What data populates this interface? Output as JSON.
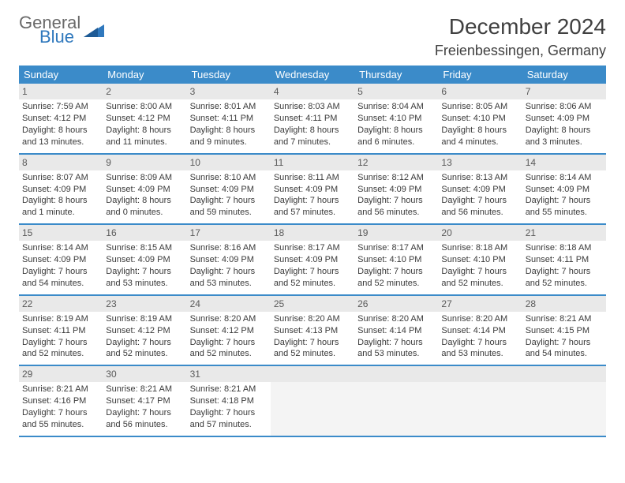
{
  "logo": {
    "general": "General",
    "blue": "Blue"
  },
  "title": "December 2024",
  "location": "Freienbessingen, Germany",
  "colors": {
    "header_bg": "#3b8bc9",
    "header_text": "#ffffff",
    "daynum_bg": "#e9e9e9",
    "border": "#3b8bc9",
    "empty_bg": "#f4f4f4",
    "text": "#3a3a3a",
    "logo_blue": "#2f78bd",
    "logo_grey": "#6a6a6a"
  },
  "days_of_week": [
    "Sunday",
    "Monday",
    "Tuesday",
    "Wednesday",
    "Thursday",
    "Friday",
    "Saturday"
  ],
  "weeks": [
    [
      {
        "n": "1",
        "sunrise": "Sunrise: 7:59 AM",
        "sunset": "Sunset: 4:12 PM",
        "day1": "Daylight: 8 hours",
        "day2": "and 13 minutes."
      },
      {
        "n": "2",
        "sunrise": "Sunrise: 8:00 AM",
        "sunset": "Sunset: 4:12 PM",
        "day1": "Daylight: 8 hours",
        "day2": "and 11 minutes."
      },
      {
        "n": "3",
        "sunrise": "Sunrise: 8:01 AM",
        "sunset": "Sunset: 4:11 PM",
        "day1": "Daylight: 8 hours",
        "day2": "and 9 minutes."
      },
      {
        "n": "4",
        "sunrise": "Sunrise: 8:03 AM",
        "sunset": "Sunset: 4:11 PM",
        "day1": "Daylight: 8 hours",
        "day2": "and 7 minutes."
      },
      {
        "n": "5",
        "sunrise": "Sunrise: 8:04 AM",
        "sunset": "Sunset: 4:10 PM",
        "day1": "Daylight: 8 hours",
        "day2": "and 6 minutes."
      },
      {
        "n": "6",
        "sunrise": "Sunrise: 8:05 AM",
        "sunset": "Sunset: 4:10 PM",
        "day1": "Daylight: 8 hours",
        "day2": "and 4 minutes."
      },
      {
        "n": "7",
        "sunrise": "Sunrise: 8:06 AM",
        "sunset": "Sunset: 4:09 PM",
        "day1": "Daylight: 8 hours",
        "day2": "and 3 minutes."
      }
    ],
    [
      {
        "n": "8",
        "sunrise": "Sunrise: 8:07 AM",
        "sunset": "Sunset: 4:09 PM",
        "day1": "Daylight: 8 hours",
        "day2": "and 1 minute."
      },
      {
        "n": "9",
        "sunrise": "Sunrise: 8:09 AM",
        "sunset": "Sunset: 4:09 PM",
        "day1": "Daylight: 8 hours",
        "day2": "and 0 minutes."
      },
      {
        "n": "10",
        "sunrise": "Sunrise: 8:10 AM",
        "sunset": "Sunset: 4:09 PM",
        "day1": "Daylight: 7 hours",
        "day2": "and 59 minutes."
      },
      {
        "n": "11",
        "sunrise": "Sunrise: 8:11 AM",
        "sunset": "Sunset: 4:09 PM",
        "day1": "Daylight: 7 hours",
        "day2": "and 57 minutes."
      },
      {
        "n": "12",
        "sunrise": "Sunrise: 8:12 AM",
        "sunset": "Sunset: 4:09 PM",
        "day1": "Daylight: 7 hours",
        "day2": "and 56 minutes."
      },
      {
        "n": "13",
        "sunrise": "Sunrise: 8:13 AM",
        "sunset": "Sunset: 4:09 PM",
        "day1": "Daylight: 7 hours",
        "day2": "and 56 minutes."
      },
      {
        "n": "14",
        "sunrise": "Sunrise: 8:14 AM",
        "sunset": "Sunset: 4:09 PM",
        "day1": "Daylight: 7 hours",
        "day2": "and 55 minutes."
      }
    ],
    [
      {
        "n": "15",
        "sunrise": "Sunrise: 8:14 AM",
        "sunset": "Sunset: 4:09 PM",
        "day1": "Daylight: 7 hours",
        "day2": "and 54 minutes."
      },
      {
        "n": "16",
        "sunrise": "Sunrise: 8:15 AM",
        "sunset": "Sunset: 4:09 PM",
        "day1": "Daylight: 7 hours",
        "day2": "and 53 minutes."
      },
      {
        "n": "17",
        "sunrise": "Sunrise: 8:16 AM",
        "sunset": "Sunset: 4:09 PM",
        "day1": "Daylight: 7 hours",
        "day2": "and 53 minutes."
      },
      {
        "n": "18",
        "sunrise": "Sunrise: 8:17 AM",
        "sunset": "Sunset: 4:09 PM",
        "day1": "Daylight: 7 hours",
        "day2": "and 52 minutes."
      },
      {
        "n": "19",
        "sunrise": "Sunrise: 8:17 AM",
        "sunset": "Sunset: 4:10 PM",
        "day1": "Daylight: 7 hours",
        "day2": "and 52 minutes."
      },
      {
        "n": "20",
        "sunrise": "Sunrise: 8:18 AM",
        "sunset": "Sunset: 4:10 PM",
        "day1": "Daylight: 7 hours",
        "day2": "and 52 minutes."
      },
      {
        "n": "21",
        "sunrise": "Sunrise: 8:18 AM",
        "sunset": "Sunset: 4:11 PM",
        "day1": "Daylight: 7 hours",
        "day2": "and 52 minutes."
      }
    ],
    [
      {
        "n": "22",
        "sunrise": "Sunrise: 8:19 AM",
        "sunset": "Sunset: 4:11 PM",
        "day1": "Daylight: 7 hours",
        "day2": "and 52 minutes."
      },
      {
        "n": "23",
        "sunrise": "Sunrise: 8:19 AM",
        "sunset": "Sunset: 4:12 PM",
        "day1": "Daylight: 7 hours",
        "day2": "and 52 minutes."
      },
      {
        "n": "24",
        "sunrise": "Sunrise: 8:20 AM",
        "sunset": "Sunset: 4:12 PM",
        "day1": "Daylight: 7 hours",
        "day2": "and 52 minutes."
      },
      {
        "n": "25",
        "sunrise": "Sunrise: 8:20 AM",
        "sunset": "Sunset: 4:13 PM",
        "day1": "Daylight: 7 hours",
        "day2": "and 52 minutes."
      },
      {
        "n": "26",
        "sunrise": "Sunrise: 8:20 AM",
        "sunset": "Sunset: 4:14 PM",
        "day1": "Daylight: 7 hours",
        "day2": "and 53 minutes."
      },
      {
        "n": "27",
        "sunrise": "Sunrise: 8:20 AM",
        "sunset": "Sunset: 4:14 PM",
        "day1": "Daylight: 7 hours",
        "day2": "and 53 minutes."
      },
      {
        "n": "28",
        "sunrise": "Sunrise: 8:21 AM",
        "sunset": "Sunset: 4:15 PM",
        "day1": "Daylight: 7 hours",
        "day2": "and 54 minutes."
      }
    ],
    [
      {
        "n": "29",
        "sunrise": "Sunrise: 8:21 AM",
        "sunset": "Sunset: 4:16 PM",
        "day1": "Daylight: 7 hours",
        "day2": "and 55 minutes."
      },
      {
        "n": "30",
        "sunrise": "Sunrise: 8:21 AM",
        "sunset": "Sunset: 4:17 PM",
        "day1": "Daylight: 7 hours",
        "day2": "and 56 minutes."
      },
      {
        "n": "31",
        "sunrise": "Sunrise: 8:21 AM",
        "sunset": "Sunset: 4:18 PM",
        "day1": "Daylight: 7 hours",
        "day2": "and 57 minutes."
      },
      null,
      null,
      null,
      null
    ]
  ]
}
